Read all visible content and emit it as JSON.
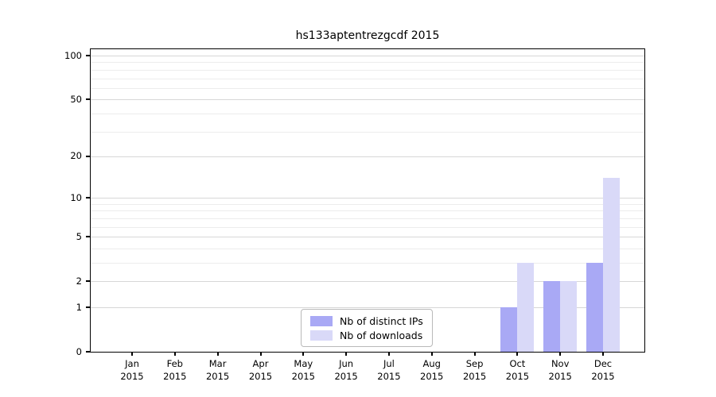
{
  "title": "hs133aptentrezgcdf 2015",
  "y_axis": {
    "tick_labels": [
      "100",
      "50",
      "20",
      "10",
      "5",
      "2",
      "1",
      "0"
    ]
  },
  "legend": {
    "items": [
      {
        "label": "Nb of distinct IPs",
        "color": "#a9a9f5"
      },
      {
        "label": "Nb of downloads",
        "color": "#d9d9f8"
      }
    ]
  },
  "colors": {
    "bar_distinct_ips": "#a9a9f5",
    "bar_downloads": "#d9d9f8",
    "grid_major": "#d7d7d7",
    "grid_minor": "#ececec",
    "spine": "#000000",
    "legend_border": "#b9b9b9"
  },
  "chart_data": {
    "type": "bar",
    "title": "hs133aptentrezgcdf 2015",
    "categories": [
      "Jan 2015",
      "Feb 2015",
      "Mar 2015",
      "Apr 2015",
      "May 2015",
      "Jun 2015",
      "Jul 2015",
      "Aug 2015",
      "Sep 2015",
      "Oct 2015",
      "Nov 2015",
      "Dec 2015"
    ],
    "months": [
      {
        "month": "Jan",
        "year": "2015"
      },
      {
        "month": "Feb",
        "year": "2015"
      },
      {
        "month": "Mar",
        "year": "2015"
      },
      {
        "month": "Apr",
        "year": "2015"
      },
      {
        "month": "May",
        "year": "2015"
      },
      {
        "month": "Jun",
        "year": "2015"
      },
      {
        "month": "Jul",
        "year": "2015"
      },
      {
        "month": "Aug",
        "year": "2015"
      },
      {
        "month": "Sep",
        "year": "2015"
      },
      {
        "month": "Oct",
        "year": "2015"
      },
      {
        "month": "Nov",
        "year": "2015"
      },
      {
        "month": "Dec",
        "year": "2015"
      }
    ],
    "series": [
      {
        "name": "Nb of distinct IPs",
        "color": "#a9a9f5",
        "values": [
          0,
          0,
          0,
          0,
          0,
          0,
          0,
          0,
          0,
          1,
          2,
          3
        ]
      },
      {
        "name": "Nb of downloads",
        "color": "#d9d9f8",
        "values": [
          0,
          0,
          0,
          0,
          0,
          0,
          0,
          0,
          0,
          3,
          2,
          14
        ]
      }
    ],
    "yscale": "log1p",
    "ylim": [
      0,
      110
    ],
    "yticks": [
      0,
      1,
      2,
      5,
      10,
      20,
      50,
      100
    ],
    "minor_gridlines": [
      3,
      4,
      6,
      7,
      8,
      9,
      30,
      40,
      60,
      70,
      80,
      90
    ],
    "grid": true,
    "xlabel": "",
    "ylabel": "",
    "legend_position": "lower center"
  }
}
